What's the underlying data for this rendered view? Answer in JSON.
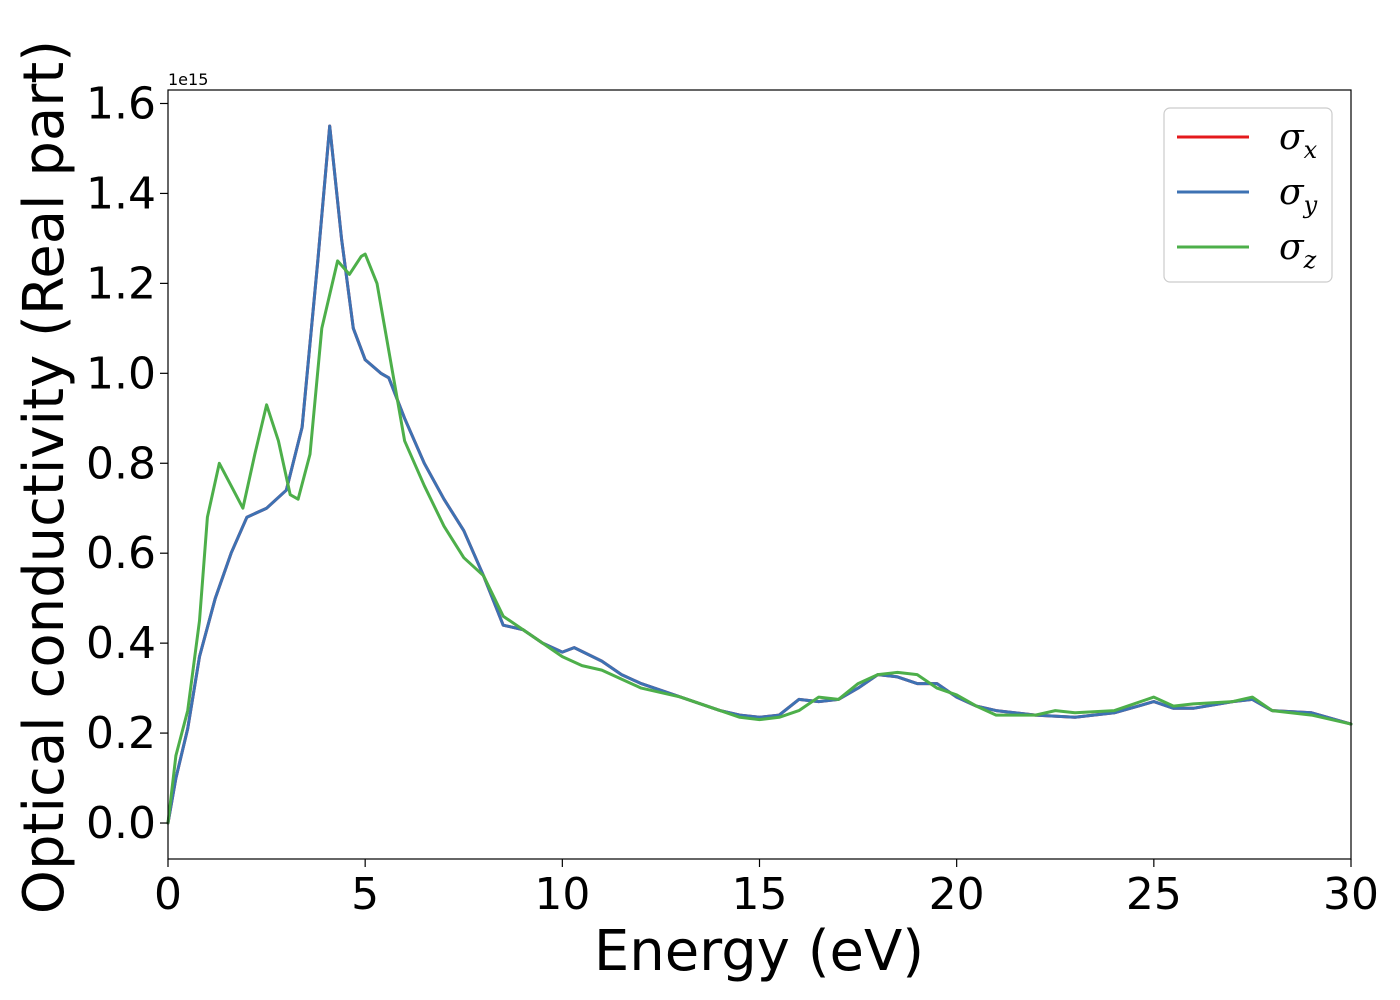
{
  "chart_data": {
    "type": "line",
    "title": "",
    "xlabel": "Energy (eV)",
    "ylabel": "Optical conductivity (Real part)",
    "y_offset_label": "1e15",
    "xlim": [
      0,
      30
    ],
    "ylim": [
      -0.08,
      1.63
    ],
    "xticks": [
      0,
      5,
      10,
      15,
      20,
      25,
      30
    ],
    "xtick_labels": [
      "0",
      "5",
      "10",
      "15",
      "20",
      "25",
      "30"
    ],
    "yticks": [
      0.0,
      0.2,
      0.4,
      0.6,
      0.8,
      1.0,
      1.2,
      1.4,
      1.6
    ],
    "ytick_labels": [
      "0.0",
      "0.2",
      "0.4",
      "0.6",
      "0.8",
      "1.0",
      "1.2",
      "1.4",
      "1.6"
    ],
    "grid": false,
    "legend_position": "top-right",
    "series": [
      {
        "name": "σx",
        "legend_symbol": "σ",
        "legend_subscript": "x",
        "color": "#e41a1c",
        "x": [
          0,
          0.2,
          0.5,
          0.8,
          1.2,
          1.6,
          2.0,
          2.5,
          3.0,
          3.4,
          3.8,
          4.1,
          4.4,
          4.7,
          5.0,
          5.4,
          5.6,
          6.0,
          6.5,
          7.0,
          7.5,
          8.0,
          8.5,
          9.0,
          9.5,
          10.0,
          10.3,
          11.0,
          11.5,
          12.0,
          13.0,
          14.0,
          14.5,
          15.0,
          15.5,
          16.0,
          16.5,
          17.0,
          17.5,
          18.0,
          18.5,
          19.0,
          19.5,
          20.0,
          20.5,
          21.0,
          22.0,
          23.0,
          24.0,
          25.0,
          25.5,
          26.0,
          27.0,
          27.5,
          28.0,
          29.0,
          30.0
        ],
        "y": [
          0,
          0.1,
          0.21,
          0.37,
          0.5,
          0.6,
          0.68,
          0.7,
          0.74,
          0.88,
          1.25,
          1.55,
          1.3,
          1.1,
          1.03,
          1.0,
          0.99,
          0.9,
          0.8,
          0.72,
          0.65,
          0.55,
          0.44,
          0.43,
          0.4,
          0.38,
          0.39,
          0.36,
          0.33,
          0.31,
          0.28,
          0.25,
          0.24,
          0.235,
          0.24,
          0.275,
          0.27,
          0.275,
          0.3,
          0.33,
          0.325,
          0.31,
          0.31,
          0.28,
          0.26,
          0.25,
          0.24,
          0.235,
          0.245,
          0.27,
          0.255,
          0.255,
          0.27,
          0.275,
          0.25,
          0.245,
          0.22
        ]
      },
      {
        "name": "σy",
        "legend_symbol": "σ",
        "legend_subscript": "y",
        "color": "#3d72b3",
        "x": [
          0,
          0.2,
          0.5,
          0.8,
          1.2,
          1.6,
          2.0,
          2.5,
          3.0,
          3.4,
          3.8,
          4.1,
          4.4,
          4.7,
          5.0,
          5.4,
          5.6,
          6.0,
          6.5,
          7.0,
          7.5,
          8.0,
          8.5,
          9.0,
          9.5,
          10.0,
          10.3,
          11.0,
          11.5,
          12.0,
          13.0,
          14.0,
          14.5,
          15.0,
          15.5,
          16.0,
          16.5,
          17.0,
          17.5,
          18.0,
          18.5,
          19.0,
          19.5,
          20.0,
          20.5,
          21.0,
          22.0,
          23.0,
          24.0,
          25.0,
          25.5,
          26.0,
          27.0,
          27.5,
          28.0,
          29.0,
          30.0
        ],
        "y": [
          0,
          0.1,
          0.21,
          0.37,
          0.5,
          0.6,
          0.68,
          0.7,
          0.74,
          0.88,
          1.25,
          1.55,
          1.3,
          1.1,
          1.03,
          1.0,
          0.99,
          0.9,
          0.8,
          0.72,
          0.65,
          0.55,
          0.44,
          0.43,
          0.4,
          0.38,
          0.39,
          0.36,
          0.33,
          0.31,
          0.28,
          0.25,
          0.24,
          0.235,
          0.24,
          0.275,
          0.27,
          0.275,
          0.3,
          0.33,
          0.325,
          0.31,
          0.31,
          0.28,
          0.26,
          0.25,
          0.24,
          0.235,
          0.245,
          0.27,
          0.255,
          0.255,
          0.27,
          0.275,
          0.25,
          0.245,
          0.22
        ]
      },
      {
        "name": "σz",
        "legend_symbol": "σ",
        "legend_subscript": "z",
        "color": "#4daf4a",
        "x": [
          0,
          0.2,
          0.5,
          0.8,
          1.0,
          1.3,
          1.6,
          1.9,
          2.2,
          2.5,
          2.8,
          3.1,
          3.3,
          3.6,
          3.9,
          4.3,
          4.6,
          4.9,
          5.0,
          5.3,
          5.6,
          6.0,
          6.5,
          7.0,
          7.5,
          8.0,
          8.5,
          9.0,
          9.5,
          10.0,
          10.5,
          11.0,
          11.5,
          12.0,
          13.0,
          14.0,
          14.5,
          15.0,
          15.5,
          16.0,
          16.5,
          17.0,
          17.5,
          18.0,
          18.5,
          19.0,
          19.5,
          20.0,
          20.5,
          21.0,
          22.0,
          22.5,
          23.0,
          24.0,
          25.0,
          25.5,
          26.0,
          27.0,
          27.5,
          28.0,
          29.0,
          30.0
        ],
        "y": [
          0,
          0.15,
          0.25,
          0.45,
          0.68,
          0.8,
          0.75,
          0.7,
          0.82,
          0.93,
          0.85,
          0.73,
          0.72,
          0.82,
          1.1,
          1.25,
          1.22,
          1.26,
          1.265,
          1.2,
          1.05,
          0.85,
          0.75,
          0.66,
          0.59,
          0.55,
          0.46,
          0.43,
          0.4,
          0.37,
          0.35,
          0.34,
          0.32,
          0.3,
          0.28,
          0.25,
          0.235,
          0.23,
          0.235,
          0.25,
          0.28,
          0.275,
          0.31,
          0.33,
          0.335,
          0.33,
          0.3,
          0.285,
          0.26,
          0.24,
          0.24,
          0.25,
          0.245,
          0.25,
          0.28,
          0.26,
          0.265,
          0.27,
          0.28,
          0.25,
          0.24,
          0.22
        ]
      }
    ]
  }
}
